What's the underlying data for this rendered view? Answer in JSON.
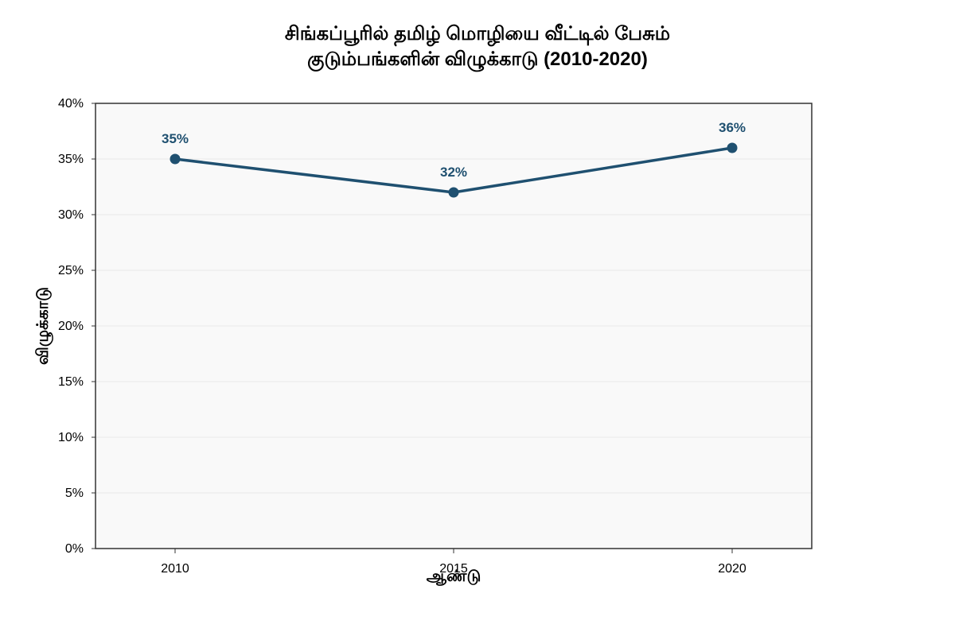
{
  "chart_data": {
    "type": "line",
    "title": [
      "சிங்கப்பூரில் தமிழ் மொழியை வீட்டில் பேசும்",
      "குடும்பங்களின் விழுக்காடு (2010-2020)"
    ],
    "xlabel": "ஆண்டு",
    "ylabel": "விழுக்காடு",
    "x": [
      "2010",
      "2015",
      "2020"
    ],
    "series": [
      {
        "values": [
          35,
          32,
          36
        ],
        "data_labels": [
          "35%",
          "32%",
          "36%"
        ]
      }
    ],
    "yticks": [
      0,
      5,
      10,
      15,
      20,
      25,
      30,
      35,
      40
    ],
    "ytick_labels": [
      "0%",
      "5%",
      "10%",
      "15%",
      "20%",
      "25%",
      "30%",
      "35%",
      "40%"
    ],
    "ylim": [
      0,
      40
    ],
    "grid": true,
    "line_color": "#1f5070",
    "plot_background": "#f9f9f9",
    "gridline_color": "#e9e9e9"
  }
}
